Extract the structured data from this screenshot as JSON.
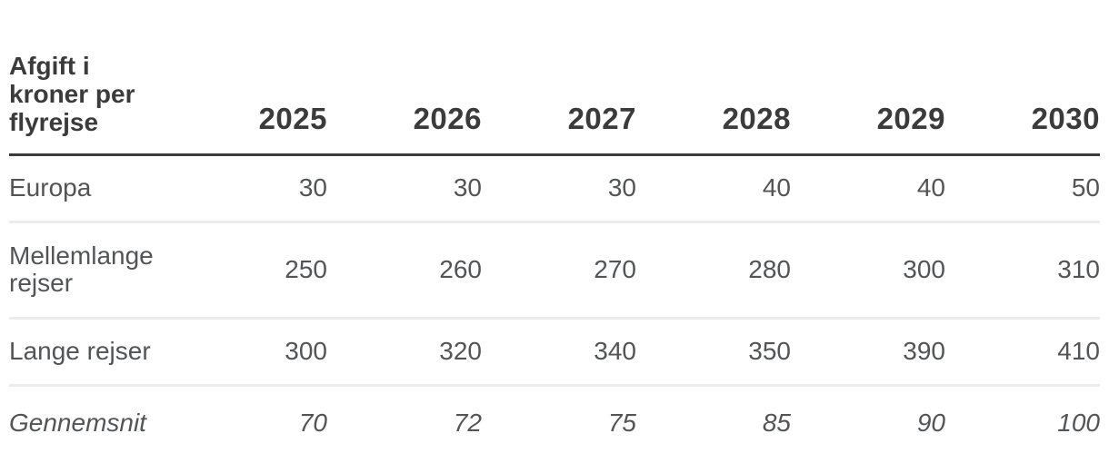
{
  "chart_data": {
    "type": "table",
    "title": "Afgift i kroner per flyrejse",
    "columns": [
      "2025",
      "2026",
      "2027",
      "2028",
      "2029",
      "2030"
    ],
    "rows": [
      {
        "label": "Europa",
        "values": [
          30,
          30,
          30,
          40,
          40,
          50
        ],
        "style": "regular"
      },
      {
        "label": "Mellemlange rejser",
        "values": [
          250,
          260,
          270,
          280,
          300,
          310
        ],
        "style": "regular"
      },
      {
        "label": "Lange rejser",
        "values": [
          300,
          320,
          340,
          350,
          390,
          410
        ],
        "style": "regular"
      },
      {
        "label": "Gennemsnit",
        "values": [
          70,
          72,
          75,
          85,
          90,
          100
        ],
        "style": "italic"
      }
    ],
    "layout_hints": {
      "first_column": "row labels, left-aligned",
      "value_columns": "right-aligned",
      "header_rule_color": "#3b3b3b",
      "row_rule_color": "#ececec",
      "header_text_color": "#3b3b3b",
      "body_text_color": "#525456",
      "background": "#ffffff",
      "grid": "horizontal rules only"
    }
  }
}
